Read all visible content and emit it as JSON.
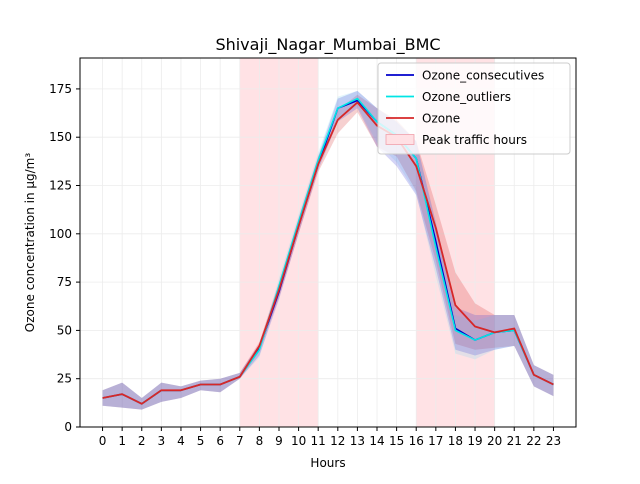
{
  "chart_data": {
    "type": "line",
    "title": "Shivaji_Nagar_Mumbai_BMC",
    "xlabel": "Hours",
    "ylabel": "Ozone concentration in µg/m³",
    "x": [
      0,
      1,
      2,
      3,
      4,
      5,
      6,
      7,
      8,
      9,
      10,
      11,
      12,
      13,
      14,
      15,
      16,
      17,
      18,
      19,
      20,
      21,
      22,
      23
    ],
    "xlim": [
      -1.15,
      24.15
    ],
    "ylim": [
      0,
      191
    ],
    "yticks": [
      0,
      25,
      50,
      75,
      100,
      125,
      150,
      175
    ],
    "grid": true,
    "legend_position": "top-right",
    "shaded_regions": [
      {
        "name": "Peak traffic hours",
        "from": 7,
        "to": 11,
        "color": "#ffe0e4"
      },
      {
        "name": "Peak traffic hours",
        "from": 16,
        "to": 20,
        "color": "#ffe0e4"
      }
    ],
    "series": [
      {
        "name": "Ozone_consecutives",
        "color": "#0000cc",
        "values": [
          15,
          17,
          12,
          19,
          19,
          22,
          22,
          26,
          41,
          70,
          104,
          136,
          165,
          169,
          158,
          151,
          139,
          96,
          51,
          45,
          49,
          50,
          27,
          22
        ],
        "band_lower": [
          11,
          10,
          9,
          13,
          15,
          19,
          18,
          25,
          37,
          66,
          100,
          133,
          158,
          165,
          145,
          135,
          120,
          82,
          40,
          37,
          40,
          42,
          21,
          16
        ],
        "band_upper": [
          19,
          23,
          15,
          23,
          21,
          24,
          25,
          28,
          43,
          74,
          108,
          140,
          170,
          174,
          165,
          158,
          148,
          106,
          62,
          58,
          58,
          58,
          32,
          27
        ]
      },
      {
        "name": "Ozone_outliers",
        "color": "#00e5e5",
        "values": [
          15,
          17,
          12,
          19,
          19,
          22,
          22,
          26,
          40,
          73,
          106,
          138,
          165,
          170,
          158,
          151,
          139,
          93,
          50,
          45,
          49,
          50,
          27,
          22
        ],
        "band_lower": [
          11,
          10,
          9,
          13,
          15,
          19,
          18,
          25,
          36,
          69,
          102,
          134,
          160,
          166,
          147,
          137,
          121,
          78,
          38,
          35,
          40,
          42,
          21,
          16
        ],
        "band_upper": [
          19,
          23,
          15,
          23,
          21,
          24,
          25,
          28,
          42,
          77,
          110,
          142,
          171,
          174,
          165,
          158,
          148,
          104,
          58,
          55,
          58,
          58,
          32,
          27
        ]
      },
      {
        "name": "Ozone",
        "color": "#d62728",
        "values": [
          15,
          17,
          12,
          19,
          19,
          22,
          22,
          26,
          42,
          71,
          104,
          136,
          159,
          168,
          156,
          150,
          135,
          103,
          63,
          52,
          49,
          51,
          27,
          22
        ],
        "band_lower": [
          11,
          10,
          9,
          13,
          15,
          19,
          18,
          25,
          39,
          67,
          100,
          132,
          152,
          163,
          145,
          140,
          122,
          86,
          43,
          40,
          41,
          42,
          21,
          16
        ],
        "band_upper": [
          19,
          23,
          15,
          23,
          21,
          24,
          25,
          28,
          44,
          75,
          108,
          140,
          164,
          172,
          165,
          159,
          148,
          115,
          80,
          64,
          58,
          58,
          32,
          27
        ]
      }
    ],
    "legend": [
      {
        "label": "Ozone_consecutives",
        "kind": "line",
        "color": "#0000cc"
      },
      {
        "label": "Ozone_outliers",
        "kind": "line",
        "color": "#00e5e5"
      },
      {
        "label": "Ozone",
        "kind": "line",
        "color": "#d62728"
      },
      {
        "label": "Peak traffic hours",
        "kind": "patch",
        "color": "#ffe0e4"
      }
    ]
  }
}
